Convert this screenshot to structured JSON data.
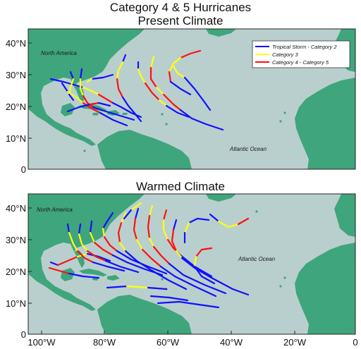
{
  "title_line1": "Category 4 & 5 Hurricanes",
  "title_line2": "Present Climate",
  "panel2_title": "Warmed Climate",
  "labels": {
    "north_america": "North America",
    "atlantic_ocean": "Atlantic Ocean"
  },
  "y_ticks": [
    "40°N",
    "30°N",
    "20°N",
    "10°N",
    "0"
  ],
  "x_ticks": [
    "100°W",
    "80°W",
    "60°W",
    "40°W",
    "20°W",
    "0"
  ],
  "legend": [
    {
      "label": "Tropical Storm - Category 2",
      "color": "#1010ff"
    },
    {
      "label": "Category 3",
      "color": "#ffff10"
    },
    {
      "label": "Category 4 - Category 5",
      "color": "#ff1010"
    }
  ],
  "colors": {
    "ocean": "#b9cfce",
    "land": "#3fa57c",
    "tropical_storm_cat2": "#1010ff",
    "category3": "#ffff10",
    "category4_5": "#ff1010"
  }
}
